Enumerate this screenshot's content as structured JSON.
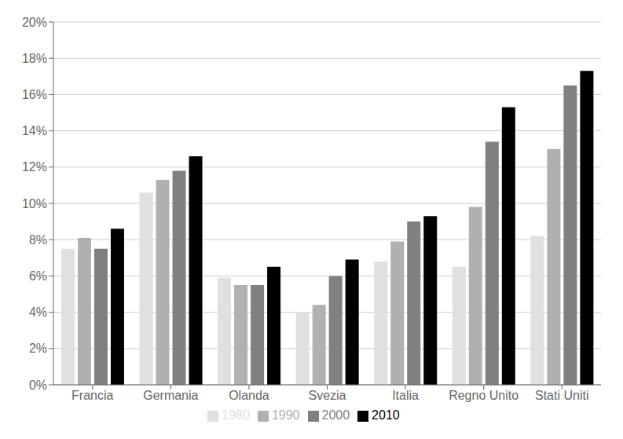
{
  "chart_data": {
    "type": "bar",
    "categories": [
      "Francia",
      "Germania",
      "Olanda",
      "Svezia",
      "Italia",
      "Regno Unito",
      "Stati Uniti"
    ],
    "series": [
      {
        "name": "1980",
        "color": "#e0e0e0",
        "values": [
          0.075,
          0.106,
          0.059,
          0.04,
          0.068,
          0.065,
          0.082
        ]
      },
      {
        "name": "1990",
        "color": "#b0b0b0",
        "values": [
          0.081,
          0.113,
          0.055,
          0.044,
          0.079,
          0.098,
          0.13
        ]
      },
      {
        "name": "2000",
        "color": "#808080",
        "values": [
          0.075,
          0.118,
          0.055,
          0.06,
          0.09,
          0.134,
          0.165
        ]
      },
      {
        "name": "2010",
        "color": "#000000",
        "values": [
          0.086,
          0.126,
          0.065,
          0.069,
          0.093,
          0.153,
          0.173
        ]
      }
    ],
    "ylim": [
      0,
      0.2
    ],
    "yticks": [
      {
        "value": 0,
        "label": "0%"
      },
      {
        "value": 0.02,
        "label": "2%"
      },
      {
        "value": 0.04,
        "label": "4%"
      },
      {
        "value": 0.06,
        "label": "6%"
      },
      {
        "value": 0.08,
        "label": "8%"
      },
      {
        "value": 0.1,
        "label": "10%"
      },
      {
        "value": 0.12,
        "label": "12%"
      },
      {
        "value": 0.14,
        "label": "14%"
      },
      {
        "value": 0.16,
        "label": "16%"
      },
      {
        "value": 0.18,
        "label": "18%"
      },
      {
        "value": 0.2,
        "label": "20%"
      }
    ],
    "grid": true,
    "legend": "bottom"
  }
}
